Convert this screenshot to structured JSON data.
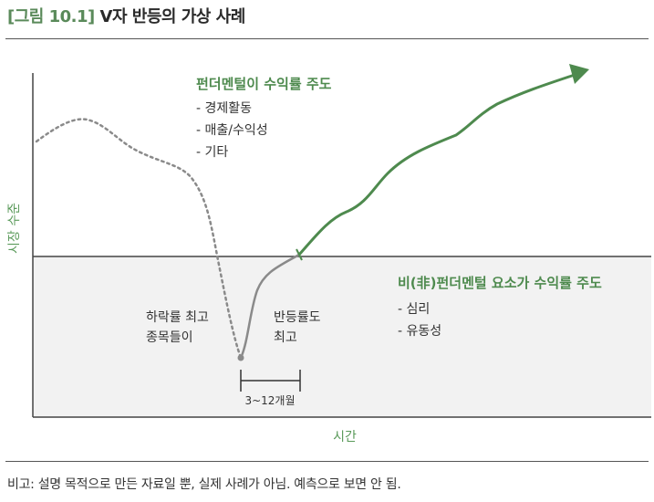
{
  "header": {
    "figure_label": "[그림 10.1]",
    "title": "V자 반등의 가상 사례"
  },
  "diagram": {
    "y_axis_label": "시장 수준",
    "x_axis_label": "시간",
    "upper_region": {
      "heading": "펀더멘털이 수익률 주도",
      "items": [
        "- 경제활동",
        "- 매출/수익성",
        "- 기타"
      ]
    },
    "lower_region": {
      "heading": "비(非)펀더멘털 요소가 수익률 주도",
      "items": [
        "- 심리",
        "- 유동성"
      ]
    },
    "annotation_bottom": [
      "하락률 최고",
      "종목들이"
    ],
    "annotation_rebound": [
      "반등률도",
      "최고"
    ],
    "duration_label": "3~12개월",
    "colors": {
      "accent_green": "#4e8a4e",
      "dotted_gray": "#8a8a8a",
      "rebound_gray": "#8a8a8a",
      "lower_fill": "#f2f2f2"
    }
  },
  "footer": {
    "note": "비고: 설명 목적으로 만든 자료일 뿐, 실제 사례가 아님. 예측으로 보면 안 됨."
  }
}
